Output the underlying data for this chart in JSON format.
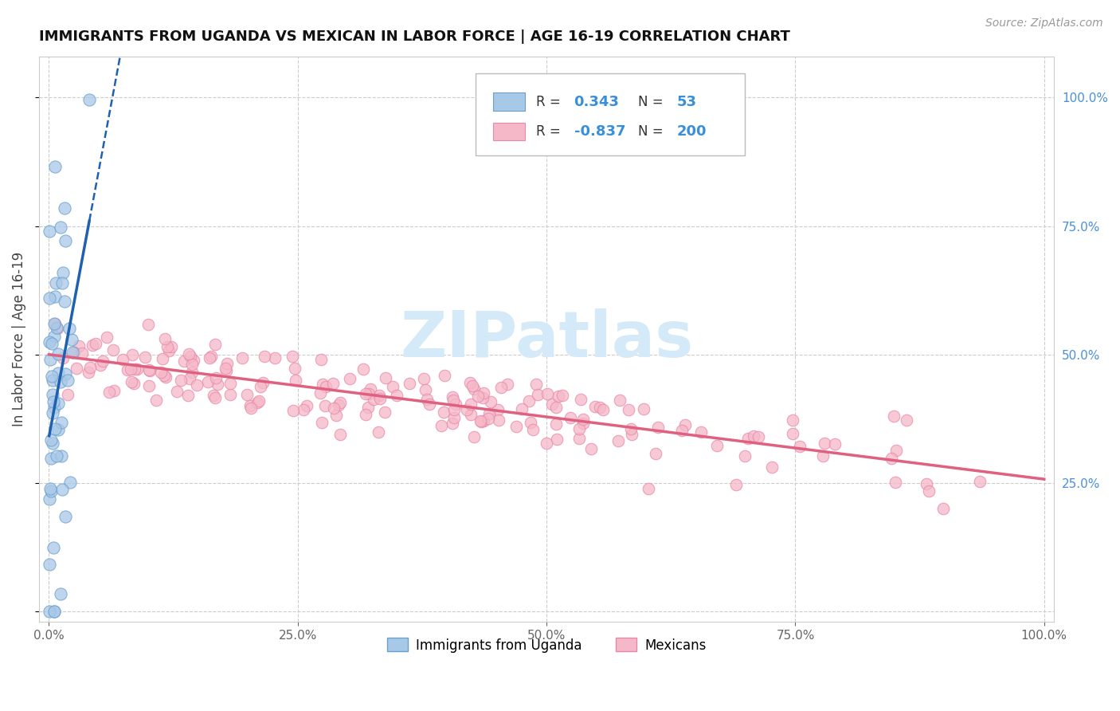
{
  "title": "IMMIGRANTS FROM UGANDA VS MEXICAN IN LABOR FORCE | AGE 16-19 CORRELATION CHART",
  "source": "Source: ZipAtlas.com",
  "ylabel": "In Labor Force | Age 16-19",
  "xlabel": "",
  "uganda_R": 0.343,
  "uganda_N": 53,
  "mexican_R": -0.837,
  "mexican_N": 200,
  "xlim": [
    -0.01,
    1.01
  ],
  "ylim": [
    -0.02,
    1.08
  ],
  "xticks": [
    0.0,
    0.25,
    0.5,
    0.75,
    1.0
  ],
  "yticks": [
    0.0,
    0.25,
    0.5,
    0.75,
    1.0
  ],
  "xticklabels": [
    "0.0%",
    "25.0%",
    "50.0%",
    "75.0%",
    "100.0%"
  ],
  "yticklabels": [
    "",
    "25.0%",
    "50.0%",
    "75.0%",
    "100.0%"
  ],
  "uganda_color": "#a8c8e8",
  "uganda_edge_color": "#6aa0cc",
  "mexican_color": "#f5b8c8",
  "mexican_edge_color": "#e888a8",
  "uganda_line_color": "#2060b0",
  "mexican_line_color": "#e06080",
  "background_color": "#ffffff",
  "grid_color": "#cccccc",
  "tick_color_right": "#4a90d9",
  "tick_color_bottom": "#666666",
  "title_fontsize": 13,
  "axis_label_fontsize": 12,
  "tick_fontsize": 11,
  "legend_fontsize": 13,
  "source_fontsize": 10,
  "watermark_text": "ZIPatlas",
  "watermark_color": "#d5eaf8",
  "seed": 7
}
